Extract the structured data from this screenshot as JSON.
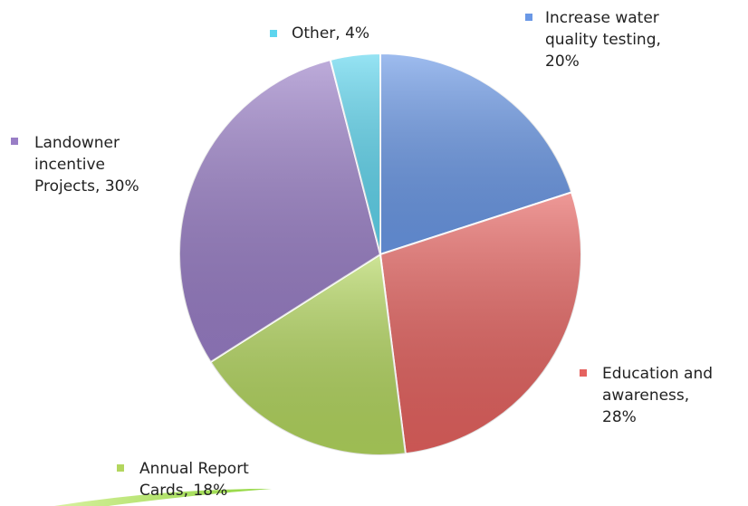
{
  "chart_data": {
    "type": "pie",
    "values": [
      20,
      28,
      18,
      30,
      4
    ],
    "value_labels": [
      "Increase water quality testing, 20%",
      "Education and awareness, 28%",
      "Annual Report Cards, 18%",
      "Landowner incentive Projects, 30%",
      "Other, 4%"
    ],
    "colors": [
      "#6a98e6",
      "#e5625f",
      "#b3d65e",
      "#997ec6",
      "#5ed5ee"
    ]
  }
}
